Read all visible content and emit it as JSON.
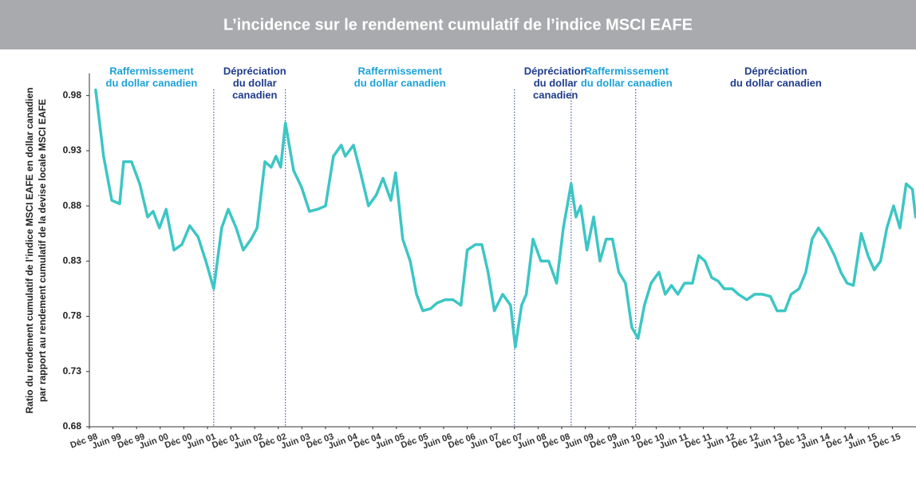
{
  "chart_data": {
    "type": "line",
    "title": "L’incidence sur le rendement cumulatif de l’indice MSCI EAFE",
    "ylabel": [
      "Ratio du rendement cumulatif de l’indice MSCI EAFE en dollar canadien",
      "par rapport au rendement cumulatif de la devise locale MSCI EAFE"
    ],
    "xlim": [
      0,
      210
    ],
    "ylim": [
      0.68,
      1.0
    ],
    "yticks": [
      0.68,
      0.73,
      0.78,
      0.83,
      0.88,
      0.93,
      0.98
    ],
    "xticks": [
      {
        "value": 0,
        "label": "Déc 98"
      },
      {
        "value": 6,
        "label": "Juin 99"
      },
      {
        "value": 12,
        "label": "Déc 99"
      },
      {
        "value": 18,
        "label": "Juin 00"
      },
      {
        "value": 24,
        "label": "Déc 00"
      },
      {
        "value": 30,
        "label": "Juin 01"
      },
      {
        "value": 36,
        "label": "Déc 01"
      },
      {
        "value": 42,
        "label": "Juin 02"
      },
      {
        "value": 48,
        "label": "Déc 02"
      },
      {
        "value": 54,
        "label": "Juin 03"
      },
      {
        "value": 60,
        "label": "Déc 03"
      },
      {
        "value": 66,
        "label": "Juin 04"
      },
      {
        "value": 72,
        "label": "Déc 04"
      },
      {
        "value": 78,
        "label": "Juin 05"
      },
      {
        "value": 84,
        "label": "Déc 05"
      },
      {
        "value": 90,
        "label": "Juin 06"
      },
      {
        "value": 96,
        "label": "Déc 06"
      },
      {
        "value": 102,
        "label": "Juin 07"
      },
      {
        "value": 108,
        "label": "Déc 07"
      },
      {
        "value": 114,
        "label": "Juin 08"
      },
      {
        "value": 120,
        "label": "Déc 08"
      },
      {
        "value": 126,
        "label": "Juin 09"
      },
      {
        "value": 132,
        "label": "Déc 09"
      },
      {
        "value": 138,
        "label": "Juin 10"
      },
      {
        "value": 144,
        "label": "Déc 10"
      },
      {
        "value": 150,
        "label": "Juin 11"
      },
      {
        "value": 156,
        "label": "Déc 11"
      },
      {
        "value": 162,
        "label": "Juin 12"
      },
      {
        "value": 168,
        "label": "Déc 12"
      },
      {
        "value": 174,
        "label": "Juin 13"
      },
      {
        "value": 180,
        "label": "Déc 13"
      },
      {
        "value": 186,
        "label": "Juin 14"
      },
      {
        "value": 192,
        "label": "Déc 14"
      },
      {
        "value": 198,
        "label": "Juin 15"
      },
      {
        "value": 204,
        "label": "Déc 15"
      }
    ],
    "dividers": [
      31.6,
      49.8,
      108,
      122.4,
      138.8
    ],
    "annotations": [
      {
        "lines": [
          "Raffermissement",
          "du dollar canadien"
        ],
        "color": "#1ba1d8"
      },
      {
        "lines": [
          "Dépréciation",
          "du dollar",
          "canadien"
        ],
        "color": "#1f3c8c"
      },
      {
        "lines": [
          "Raffermissement",
          "du dollar canadien"
        ],
        "color": "#1ba1d8"
      },
      {
        "lines": [
          "Dépréciation",
          "du dollar",
          "canadien"
        ],
        "color": "#1f3c8c"
      },
      {
        "lines": [
          "Raffermissement",
          "du dollar canadien"
        ],
        "color": "#1ba1d8"
      },
      {
        "lines": [
          "Dépréciation",
          "du dollar canadien"
        ],
        "color": "#1f3c8c"
      }
    ],
    "series": [
      {
        "color": "#3cc6c4",
        "x": [
          1.6,
          3.6,
          5.7,
          7.7,
          8.7,
          10.7,
          12.8,
          14.8,
          16.2,
          17.8,
          19.5,
          21.5,
          23.5,
          25.5,
          27.6,
          29.6,
          31.6,
          33.6,
          35.3,
          37.3,
          39.1,
          41.1,
          42.6,
          44.6,
          46.2,
          47.4,
          48.6,
          49.8,
          51.9,
          53.9,
          55.9,
          58,
          60,
          62,
          64,
          65,
          67.1,
          68.9,
          70.9,
          72.9,
          74.6,
          76.6,
          77.8,
          79.6,
          81.5,
          83.1,
          84.7,
          86.7,
          88.3,
          90.4,
          92.4,
          94.4,
          96,
          98.1,
          99.7,
          101.3,
          102.9,
          105,
          107,
          108.2,
          109.8,
          111,
          112.7,
          114.7,
          116.7,
          118.7,
          120.4,
          122.4,
          123.6,
          124.8,
          126.4,
          128.1,
          129.7,
          131.3,
          132.9,
          134.5,
          136.2,
          137.8,
          139.4,
          141,
          142.7,
          144.7,
          146.3,
          147.9,
          149.5,
          151.2,
          153.2,
          154.8,
          156.4,
          158.1,
          159.7,
          161.3,
          163.3,
          164.9,
          167,
          169,
          171,
          173,
          174.7,
          176.7,
          178.3,
          180.3,
          182,
          183.6,
          185.2,
          187.2,
          189.3,
          190.9,
          192.5,
          194.1,
          196.1,
          197.8,
          199.4,
          201,
          202.6,
          204.3,
          205.9,
          207.5,
          209.1,
          209.9
        ],
        "values": [
          0.985,
          0.925,
          0.885,
          0.882,
          0.92,
          0.92,
          0.9,
          0.87,
          0.875,
          0.86,
          0.877,
          0.84,
          0.845,
          0.862,
          0.852,
          0.83,
          0.805,
          0.86,
          0.877,
          0.86,
          0.84,
          0.85,
          0.86,
          0.92,
          0.915,
          0.925,
          0.915,
          0.955,
          0.912,
          0.897,
          0.875,
          0.877,
          0.88,
          0.925,
          0.935,
          0.925,
          0.935,
          0.91,
          0.88,
          0.89,
          0.905,
          0.885,
          0.91,
          0.85,
          0.83,
          0.8,
          0.785,
          0.787,
          0.792,
          0.795,
          0.795,
          0.79,
          0.84,
          0.845,
          0.845,
          0.82,
          0.785,
          0.8,
          0.79,
          0.752,
          0.79,
          0.8,
          0.85,
          0.83,
          0.83,
          0.81,
          0.86,
          0.9,
          0.87,
          0.88,
          0.84,
          0.87,
          0.83,
          0.85,
          0.85,
          0.82,
          0.81,
          0.77,
          0.76,
          0.79,
          0.81,
          0.82,
          0.8,
          0.808,
          0.8,
          0.81,
          0.81,
          0.835,
          0.83,
          0.815,
          0.812,
          0.805,
          0.805,
          0.8,
          0.795,
          0.8,
          0.8,
          0.798,
          0.785,
          0.785,
          0.8,
          0.805,
          0.82,
          0.85,
          0.86,
          0.85,
          0.835,
          0.82,
          0.81,
          0.808,
          0.855,
          0.835,
          0.822,
          0.83,
          0.86,
          0.88,
          0.86,
          0.9,
          0.895,
          0.87
        ]
      }
    ]
  }
}
